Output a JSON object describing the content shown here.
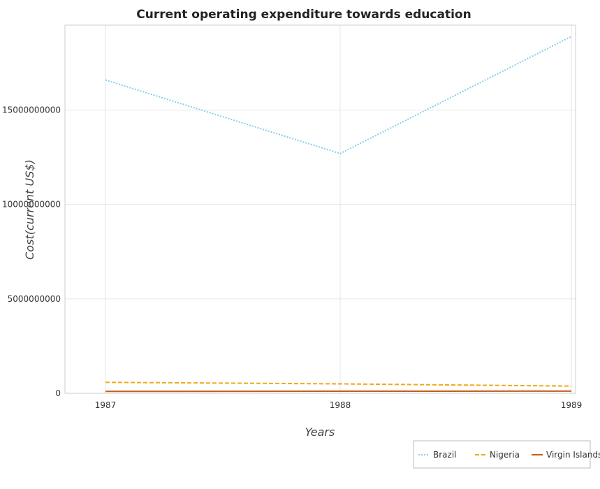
{
  "chart_data": {
    "type": "line",
    "title": "Current operating expenditure towards education",
    "xlabel": "Years",
    "ylabel": "Cost(current US$)",
    "x": [
      "1987",
      "1988",
      "1989"
    ],
    "ylim": [
      0,
      19500000000
    ],
    "yticks": [
      0,
      5000000000,
      10000000000,
      15000000000
    ],
    "ytick_labels": [
      "0",
      "5000000000",
      "10000000000",
      "15000000000"
    ],
    "grid": true,
    "legend_position": "bottom-right",
    "series": [
      {
        "name": "Brazil",
        "values": [
          16600000000,
          12700000000,
          18900000000
        ],
        "color": "#87ceeb",
        "dash": "2,2"
      },
      {
        "name": "Nigeria",
        "values": [
          580000000,
          500000000,
          380000000
        ],
        "color": "#f0a818",
        "dash": "6,3"
      },
      {
        "name": "Virgin Islands",
        "values": [
          100000000,
          110000000,
          115000000
        ],
        "color": "#c85a1a",
        "dash": ""
      }
    ]
  }
}
